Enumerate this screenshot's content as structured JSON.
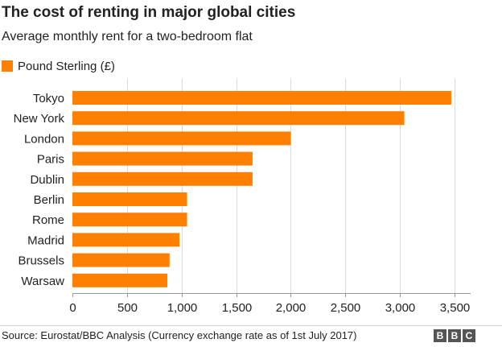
{
  "title": "The cost of renting in major global cities",
  "subtitle": "Average monthly rent for a two-bedroom flat",
  "legend": {
    "label": "Pound Sterling (£)"
  },
  "colors": {
    "bar": "#FF7F00",
    "grid": "#d9d9d9",
    "axis": "#999999",
    "text": "#222222"
  },
  "chart_data": {
    "type": "bar",
    "orientation": "horizontal",
    "categories": [
      "Tokyo",
      "New York",
      "London",
      "Paris",
      "Dublin",
      "Berlin",
      "Rome",
      "Madrid",
      "Brussels",
      "Warsaw"
    ],
    "series": [
      {
        "name": "Pound Sterling (£)",
        "values": [
          3470,
          3040,
          2000,
          1650,
          1650,
          1050,
          1050,
          980,
          890,
          870
        ]
      }
    ],
    "xlim": [
      0,
      3500
    ],
    "xticks": [
      0,
      500,
      1000,
      1500,
      2000,
      2500,
      3000,
      3500
    ],
    "xtick_labels": [
      "0",
      "500",
      "1,000",
      "1,500",
      "2,000",
      "2,500",
      "3,000",
      "3,500"
    ],
    "grid": true,
    "legend_position": "top-left"
  },
  "source": "Source: Eurostat/BBC Analysis (Currency exchange rate as of 1st July 2017)",
  "logo": {
    "letters": [
      "B",
      "B",
      "C"
    ]
  }
}
